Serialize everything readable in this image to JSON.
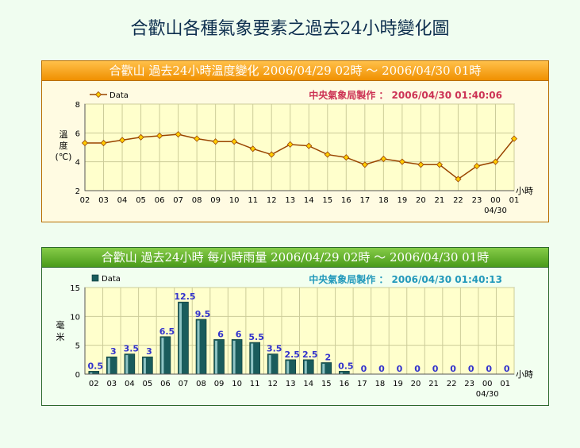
{
  "page": {
    "title": "合歡山各種氣象要素之過去24小時變化圖"
  },
  "chart_data": [
    {
      "type": "line",
      "title": "合歡山  過去24小時溫度變化  2006/04/29  02時  ～  2006/04/30  01時",
      "credit": "中央氣象局製作 ： 2006/04/30  01:40:06",
      "legend": "Data",
      "ylabel": "溫度(℃)",
      "xunit": "小時",
      "date_label": "04/30",
      "categories": [
        "02",
        "03",
        "04",
        "05",
        "06",
        "07",
        "08",
        "09",
        "10",
        "11",
        "12",
        "13",
        "14",
        "15",
        "16",
        "17",
        "18",
        "19",
        "20",
        "21",
        "22",
        "23",
        "00",
        "01"
      ],
      "values": [
        5.3,
        5.3,
        5.5,
        5.7,
        5.8,
        5.9,
        5.6,
        5.4,
        5.4,
        4.9,
        4.5,
        5.2,
        5.1,
        4.5,
        4.3,
        3.8,
        4.2,
        4.0,
        3.8,
        3.8,
        2.8,
        3.7,
        4.0,
        5.6
      ],
      "ylim": [
        2,
        8
      ],
      "yticks": [
        "2",
        "4",
        "6",
        "8"
      ],
      "colors": {
        "line": "#994400",
        "marker": "#ffcc00"
      }
    },
    {
      "type": "bar",
      "title": "合歡山  過去24小時  每小時雨量  2006/04/29  02時  ～  2006/04/30  01時",
      "credit": "中央氣象局製作 ： 2006/04/30  01:40:13",
      "legend": "Data",
      "ylabel": "毫米",
      "xunit": "小時",
      "date_label": "04/30",
      "categories": [
        "02",
        "03",
        "04",
        "05",
        "06",
        "07",
        "08",
        "09",
        "10",
        "11",
        "12",
        "13",
        "14",
        "15",
        "16",
        "17",
        "18",
        "19",
        "20",
        "21",
        "22",
        "23",
        "00",
        "01"
      ],
      "values": [
        0.5,
        3,
        3.5,
        3,
        6.5,
        12.5,
        9.5,
        6,
        6,
        5.5,
        3.5,
        2.5,
        2.5,
        2,
        0.5,
        0,
        0,
        0,
        0,
        0,
        0,
        0,
        0,
        0
      ],
      "labels": [
        "0.5",
        "3",
        "3.5",
        "3",
        "6.5",
        "12.5",
        "9.5",
        "6",
        "6",
        "5.5",
        "3.5",
        "2.5",
        "2.5",
        "2",
        "0.5",
        "0",
        "0",
        "0",
        "0",
        "0",
        "0",
        "0",
        "0",
        "0"
      ],
      "ylim": [
        0,
        15
      ],
      "yticks": [
        "0",
        "5",
        "10",
        "15"
      ],
      "colors": {
        "bar": "#1a5c5c",
        "label": "#3333cc"
      }
    }
  ]
}
